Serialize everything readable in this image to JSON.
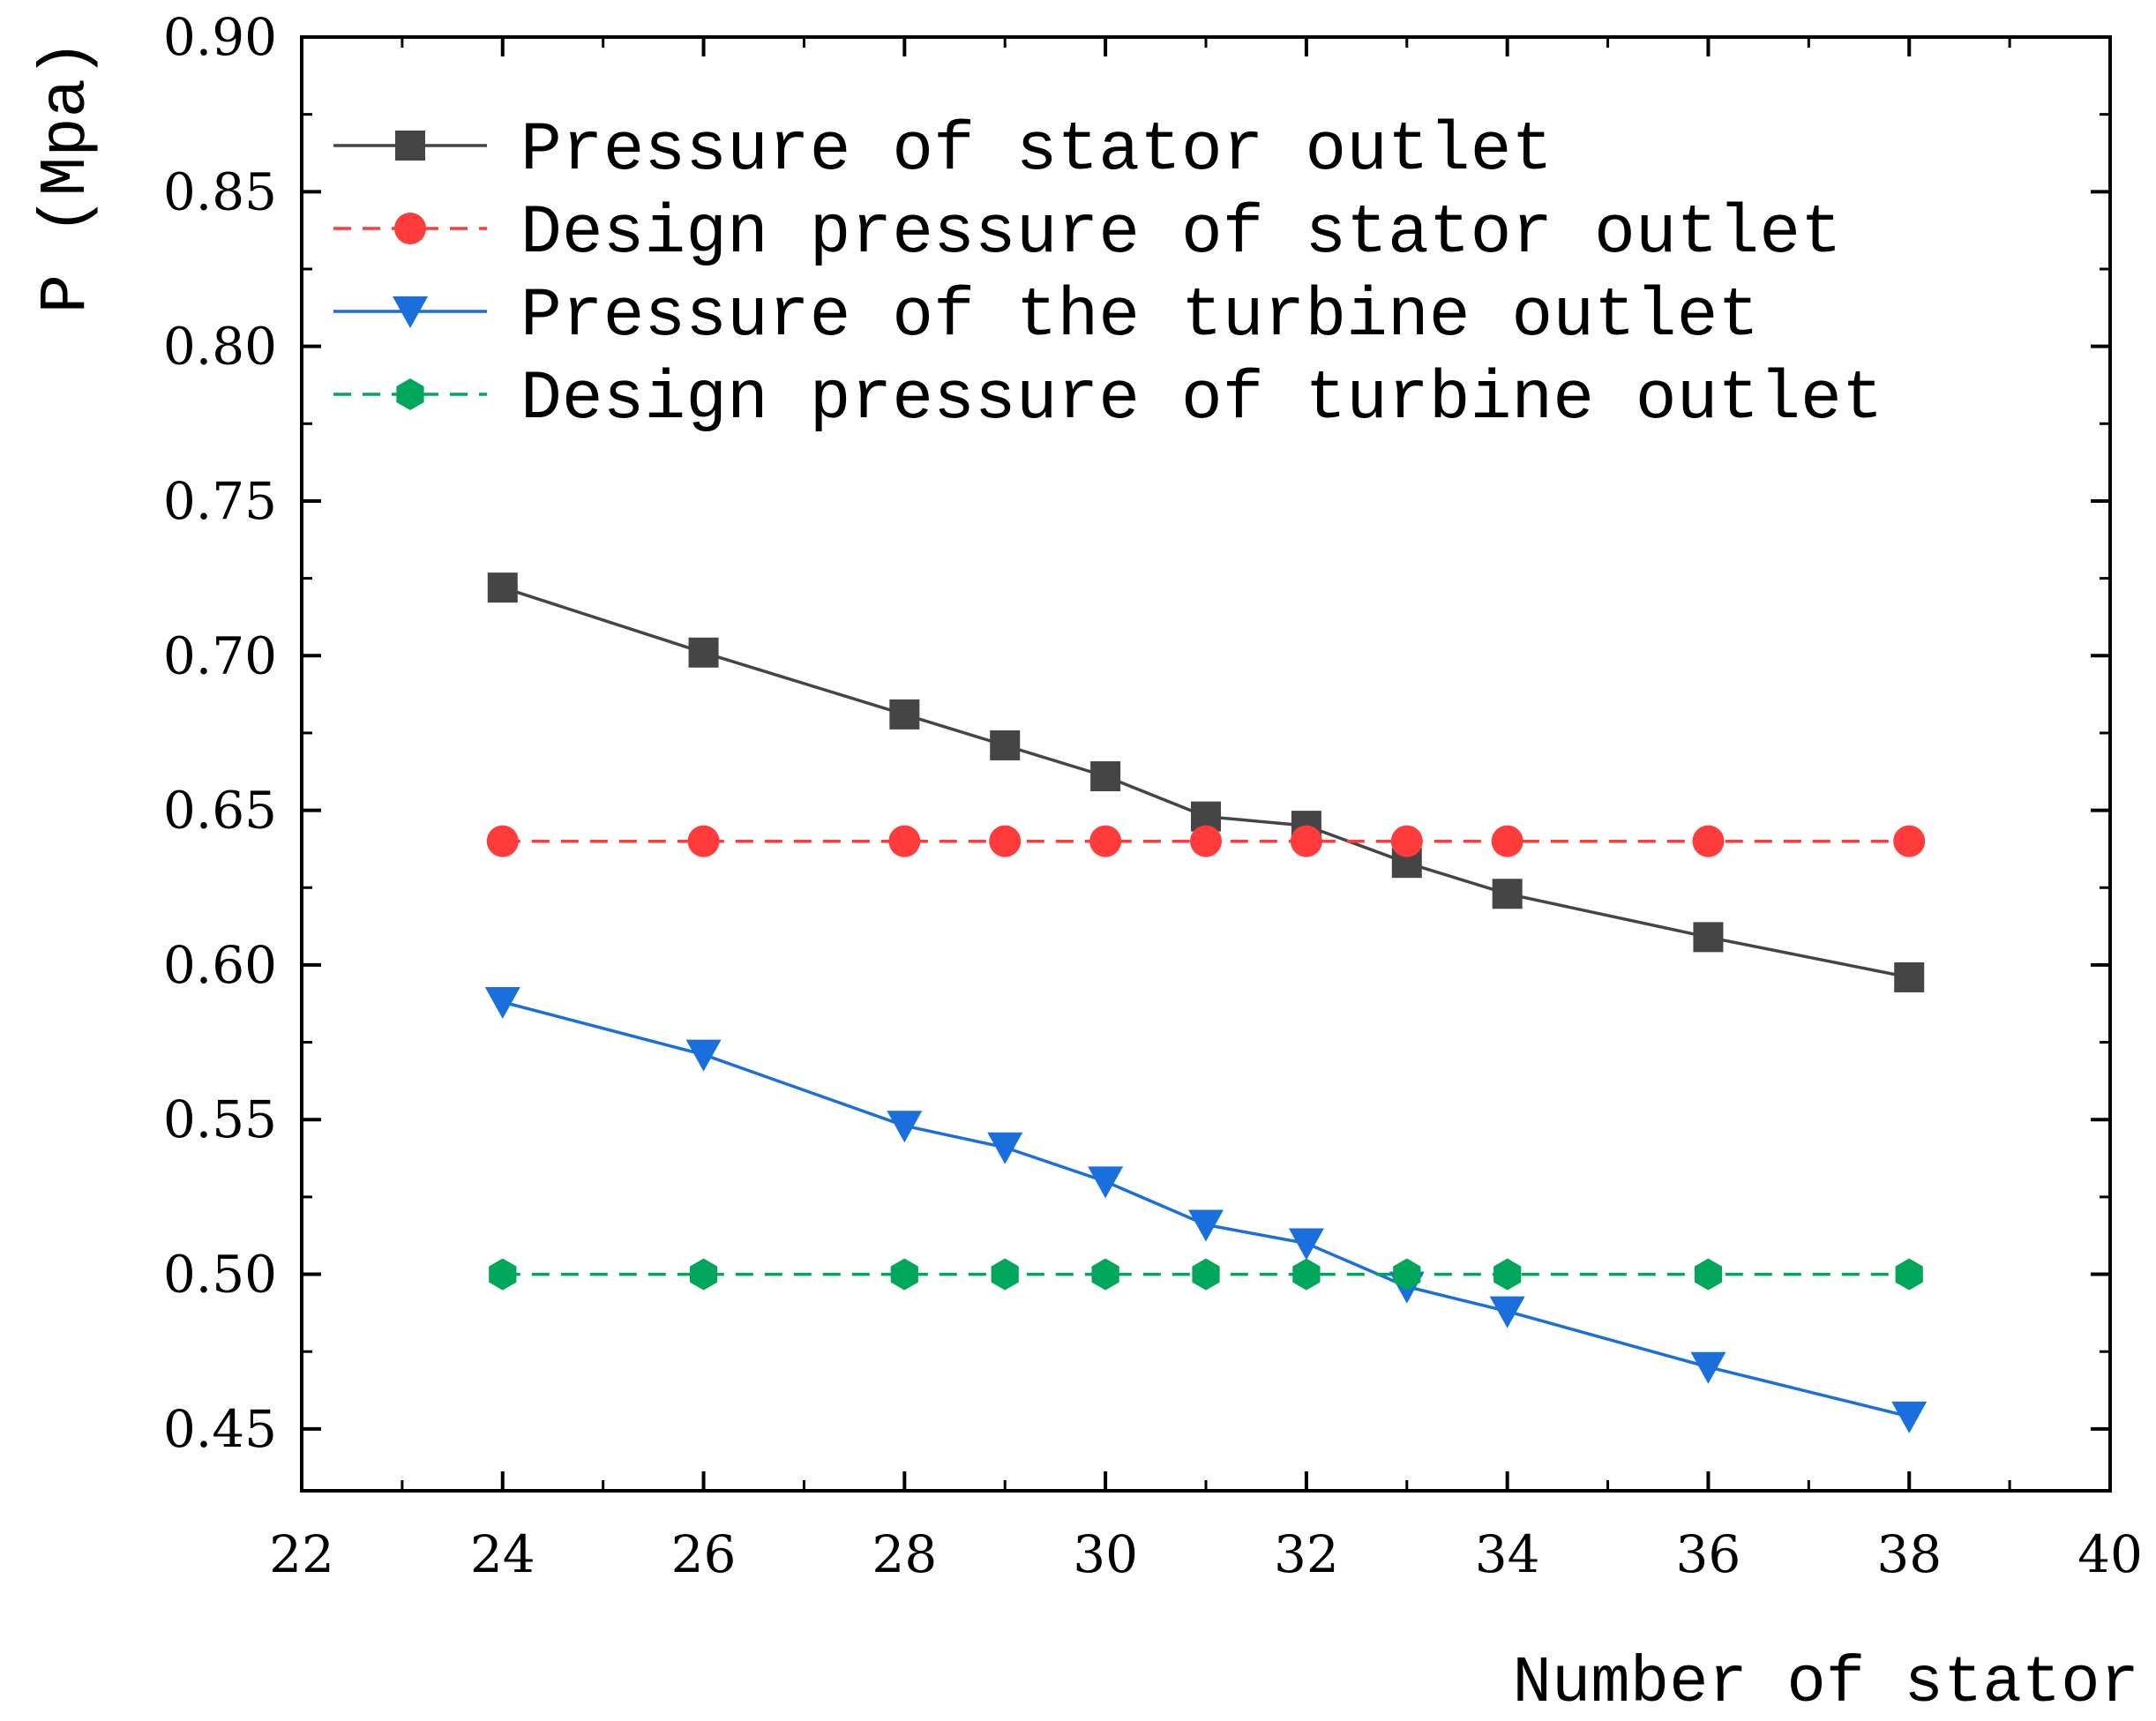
{
  "chart_data": {
    "type": "line",
    "title": "",
    "xlabel": "Number of stator",
    "ylabel": "P (Mpa)",
    "xlim": [
      22,
      40
    ],
    "ylim": [
      0.43,
      0.9
    ],
    "x_ticks": [
      "22",
      "24",
      "26",
      "28",
      "30",
      "32",
      "34",
      "36",
      "38",
      "40"
    ],
    "y_ticks": [
      "0.45",
      "0.50",
      "0.55",
      "0.60",
      "0.65",
      "0.70",
      "0.75",
      "0.80",
      "0.85",
      "0.90"
    ],
    "x_tick_values": [
      22,
      24,
      26,
      28,
      30,
      32,
      34,
      36,
      38,
      40
    ],
    "y_tick_values": [
      0.45,
      0.5,
      0.55,
      0.6,
      0.65,
      0.7,
      0.75,
      0.8,
      0.85,
      0.9
    ],
    "legend_position": "top-left",
    "grid": false,
    "x": [
      24,
      26,
      28,
      29,
      30,
      31,
      32,
      33,
      34,
      36,
      38
    ],
    "series": [
      {
        "name": "Pressure of stator outlet",
        "color": "#454545",
        "marker": "square",
        "line": "solid",
        "values": [
          0.722,
          0.701,
          0.681,
          0.671,
          0.661,
          0.648,
          0.645,
          0.633,
          0.623,
          0.609,
          0.596
        ]
      },
      {
        "name": "Design pressure of stator outlet",
        "color": "#ff3b3b",
        "marker": "circle",
        "line": "dashed",
        "values": [
          0.64,
          0.64,
          0.64,
          0.64,
          0.64,
          0.64,
          0.64,
          0.64,
          0.64,
          0.64,
          0.64
        ]
      },
      {
        "name": "Pressure of the turbine outlet",
        "color": "#1a6fdc",
        "marker": "triangle-down",
        "line": "solid",
        "values": [
          0.588,
          0.571,
          0.548,
          0.541,
          0.53,
          0.516,
          0.51,
          0.496,
          0.488,
          0.47,
          0.454
        ]
      },
      {
        "name": "Design pressure of turbine outlet",
        "color": "#00a65a",
        "marker": "hexagon",
        "line": "dashed",
        "values": [
          0.5,
          0.5,
          0.5,
          0.5,
          0.5,
          0.5,
          0.5,
          0.5,
          0.5,
          0.5,
          0.5
        ]
      }
    ]
  }
}
